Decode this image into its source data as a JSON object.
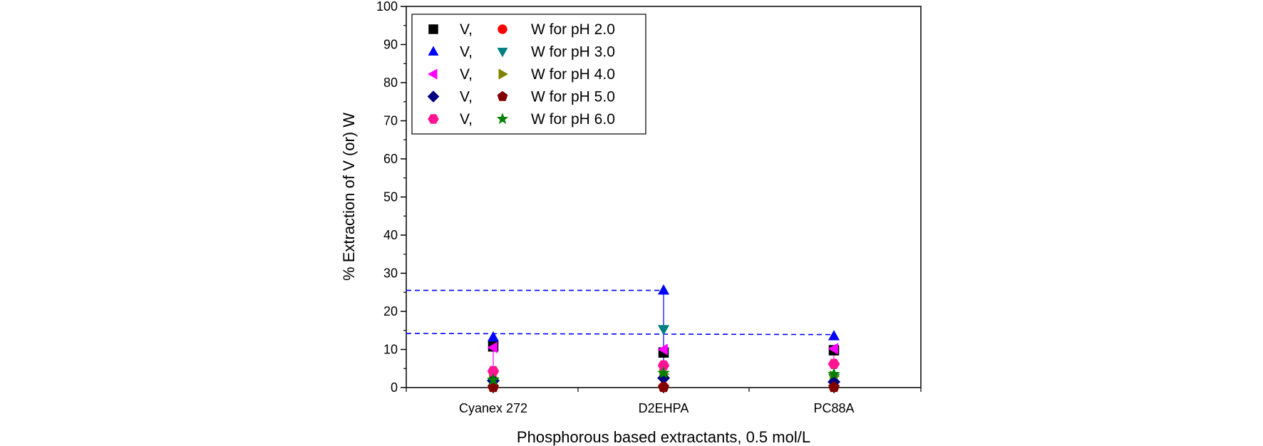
{
  "chart_data": {
    "type": "scatter",
    "xlabel": "Phosphorous based extractants, 0.5 mol/L",
    "ylabel": "% Extraction of V (or) W",
    "ylim": [
      0,
      100
    ],
    "yticks": [
      0,
      10,
      20,
      30,
      40,
      50,
      60,
      70,
      80,
      90,
      100
    ],
    "categories": [
      "Cyanex 272",
      "D2EHPA",
      "PC88A"
    ],
    "legend_position": "top-left",
    "series": [
      {
        "name": "V, W for pH 2.0 (V)",
        "metal": "V",
        "ph": "2.0",
        "marker": "square",
        "color": "#000000",
        "values": [
          10.8,
          9.2,
          9.8
        ]
      },
      {
        "name": "V, W for pH 2.0 (W)",
        "metal": "W",
        "ph": "2.0",
        "marker": "circle",
        "color": "#ff0000",
        "values": [
          0.2,
          0.2,
          0.2
        ]
      },
      {
        "name": "V, W for pH 3.0 (V)",
        "metal": "V",
        "ph": "3.0",
        "marker": "triangle-up",
        "color": "#0000ff",
        "values": [
          13.2,
          25.5,
          13.5
        ]
      },
      {
        "name": "V, W for pH 3.0 (W)",
        "metal": "W",
        "ph": "3.0",
        "marker": "triangle-down",
        "color": "#008080",
        "values": [
          1.5,
          15.3,
          2.5
        ]
      },
      {
        "name": "V, W for pH 4.0 (V)",
        "metal": "V",
        "ph": "4.0",
        "marker": "triangle-left",
        "color": "#ff00ff",
        "values": [
          10.5,
          10.0,
          10.2
        ]
      },
      {
        "name": "V, W for pH 4.0 (W)",
        "metal": "W",
        "ph": "4.0",
        "marker": "triangle-right",
        "color": "#808000",
        "values": [
          2.5,
          3.5,
          3.0
        ]
      },
      {
        "name": "V, W for pH 5.0 (V)",
        "metal": "V",
        "ph": "5.0",
        "marker": "diamond",
        "color": "#000080",
        "values": [
          1.8,
          2.5,
          1.5
        ]
      },
      {
        "name": "V, W for pH 5.0 (W)",
        "metal": "W",
        "ph": "5.0",
        "marker": "pentagon",
        "color": "#800000",
        "values": [
          0.1,
          0.1,
          0.1
        ]
      },
      {
        "name": "V, W for pH 6.0 (V)",
        "metal": "V",
        "ph": "6.0",
        "marker": "hexagon",
        "color": "#ff1493",
        "values": [
          4.3,
          5.8,
          6.2
        ]
      },
      {
        "name": "V, W for pH 6.0 (W)",
        "metal": "W",
        "ph": "6.0",
        "marker": "star",
        "color": "#008000",
        "values": [
          2.0,
          3.8,
          3.5
        ]
      }
    ],
    "vertical_lines": [
      {
        "category": "Cyanex 272",
        "color": "#ff00ff",
        "from": 0,
        "to": 10.5
      },
      {
        "category": "D2EHPA",
        "color": "#0000ff",
        "from": 0,
        "to": 25.5
      },
      {
        "category": "PC88A",
        "color": "#ff00ff",
        "from": 0,
        "to": 10.2
      }
    ],
    "reference_lines": [
      {
        "style": "dashed",
        "color": "#0000ff",
        "from_category": "axis",
        "to_category": "D2EHPA",
        "y_start": 25.5,
        "y_end": 25.5
      },
      {
        "style": "dashed",
        "color": "#0000ff",
        "from_category": "axis",
        "to_category": "PC88A",
        "y_start": 14.2,
        "y_end": 13.9
      }
    ],
    "legend": [
      {
        "label_v": "V,",
        "label_w": "W for pH 2.0",
        "v_marker": "square",
        "v_color": "#000000",
        "w_marker": "circle",
        "w_color": "#ff0000"
      },
      {
        "label_v": "V,",
        "label_w": "W for pH 3.0",
        "v_marker": "triangle-up",
        "v_color": "#0000ff",
        "w_marker": "triangle-down",
        "w_color": "#008080"
      },
      {
        "label_v": "V,",
        "label_w": "W for pH 4.0",
        "v_marker": "triangle-left",
        "v_color": "#ff00ff",
        "w_marker": "triangle-right",
        "w_color": "#808000"
      },
      {
        "label_v": "V,",
        "label_w": "W for pH 5.0",
        "v_marker": "diamond",
        "v_color": "#000080",
        "w_marker": "pentagon",
        "w_color": "#800000"
      },
      {
        "label_v": "V,",
        "label_w": "W for pH 6.0",
        "v_marker": "hexagon",
        "v_color": "#ff1493",
        "w_marker": "star",
        "w_color": "#008000"
      }
    ]
  }
}
